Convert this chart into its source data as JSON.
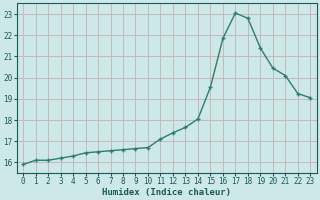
{
  "x": [
    0,
    1,
    2,
    3,
    4,
    5,
    6,
    7,
    8,
    9,
    10,
    11,
    12,
    13,
    14,
    15,
    16,
    17,
    18,
    19,
    20,
    21,
    22,
    23
  ],
  "y": [
    15.9,
    16.1,
    16.1,
    16.2,
    16.3,
    16.45,
    16.5,
    16.55,
    16.6,
    16.65,
    16.7,
    17.1,
    17.4,
    17.65,
    18.05,
    19.55,
    21.85,
    23.05,
    22.8,
    21.4,
    20.45,
    20.1,
    19.25,
    19.05
  ],
  "line_color": "#2e7d6e",
  "bg_color": "#cce8e8",
  "grid_color": "#c8b8b8",
  "xlabel": "Humidex (Indice chaleur)",
  "xlim": [
    -0.5,
    23.5
  ],
  "ylim": [
    15.5,
    23.5
  ],
  "yticks": [
    16,
    17,
    18,
    19,
    20,
    21,
    22,
    23
  ],
  "xticks": [
    0,
    1,
    2,
    3,
    4,
    5,
    6,
    7,
    8,
    9,
    10,
    11,
    12,
    13,
    14,
    15,
    16,
    17,
    18,
    19,
    20,
    21,
    22,
    23
  ],
  "font_color": "#1a5c52",
  "xlabel_fontsize": 6.5,
  "tick_fontsize": 5.5,
  "marker": "+",
  "markersize": 3.5,
  "linewidth": 1.0
}
